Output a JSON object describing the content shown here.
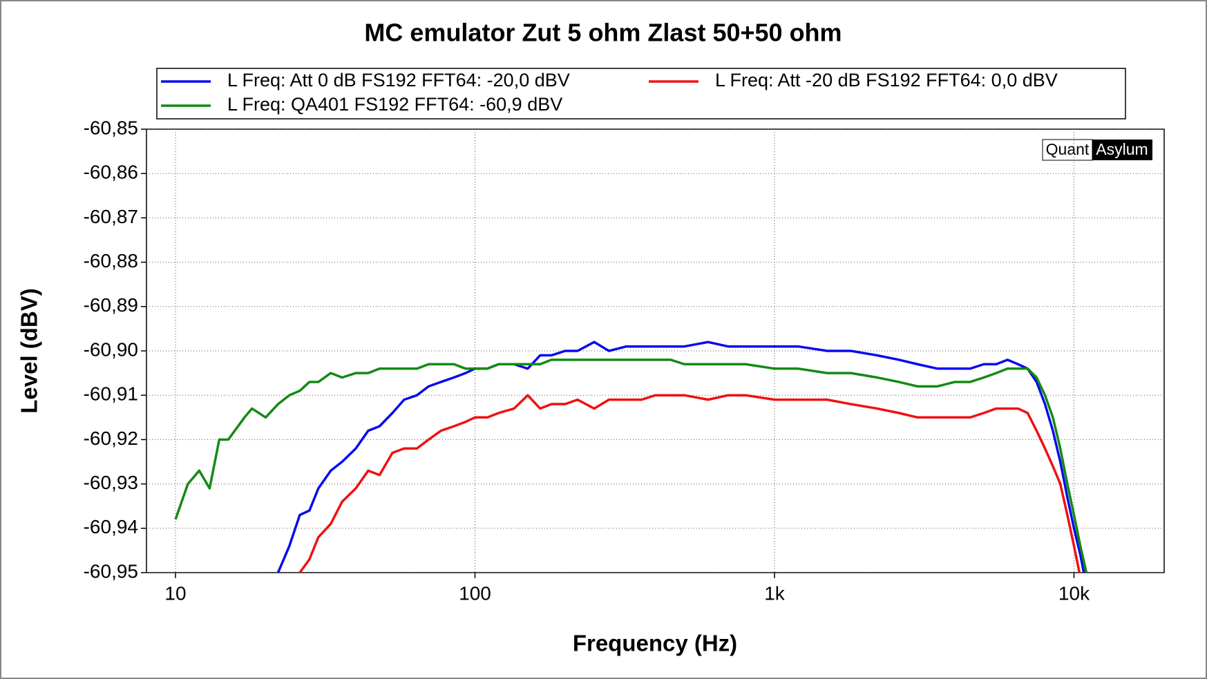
{
  "chart_data": {
    "type": "line",
    "title": "MC emulator Zut 5 ohm Zlast 50+50 ohm",
    "x_label": "Frequency (Hz)",
    "y_label": "Level (dBV)",
    "watermark": [
      "Quant",
      "Asylum"
    ],
    "x_scale": "log",
    "grid": true,
    "legend": "top",
    "xlim": [
      8,
      20000
    ],
    "xticks": [
      10,
      100,
      {
        "value": 1000,
        "label": "1k"
      },
      {
        "value": 10000,
        "label": "10k"
      }
    ],
    "ylim": [
      -60.95,
      -60.85
    ],
    "yticks": [
      {
        "value": -60.85,
        "label": "-60,85"
      },
      {
        "value": -60.86,
        "label": "-60,86"
      },
      {
        "value": -60.87,
        "label": "-60,87"
      },
      {
        "value": -60.88,
        "label": "-60,88"
      },
      {
        "value": -60.89,
        "label": "-60,89"
      },
      {
        "value": -60.9,
        "label": "-60,90"
      },
      {
        "value": -60.91,
        "label": "-60,91"
      },
      {
        "value": -60.92,
        "label": "-60,92"
      },
      {
        "value": -60.93,
        "label": "-60,93"
      },
      {
        "value": -60.94,
        "label": "-60,94"
      },
      {
        "value": -60.95,
        "label": "-60,95"
      }
    ],
    "x": [
      10,
      11,
      12,
      13,
      14,
      15,
      17,
      18,
      20,
      22,
      24,
      26,
      28,
      30,
      33,
      36,
      40,
      44,
      48,
      53,
      58,
      64,
      70,
      77,
      85,
      93,
      100,
      110,
      120,
      135,
      150,
      165,
      180,
      200,
      220,
      250,
      280,
      320,
      360,
      400,
      450,
      500,
      600,
      700,
      800,
      1000,
      1200,
      1500,
      1800,
      2200,
      2600,
      3000,
      3500,
      4000,
      4500,
      5000,
      5500,
      6000,
      6500,
      7000,
      7500,
      8000,
      8500,
      9000,
      9500,
      10000,
      10500,
      11000
    ],
    "series": [
      {
        "name": "L Freq: Att 0 dB FS192 FFT64: -20,0 dBV",
        "color": "#0a0aee",
        "values": [
          null,
          null,
          null,
          null,
          null,
          null,
          null,
          null,
          null,
          -60.95,
          -60.944,
          -60.937,
          -60.936,
          -60.931,
          -60.927,
          -60.925,
          -60.922,
          -60.918,
          -60.917,
          -60.914,
          -60.911,
          -60.91,
          -60.908,
          -60.907,
          -60.906,
          -60.905,
          -60.904,
          -60.904,
          -60.903,
          -60.903,
          -60.904,
          -60.901,
          -60.901,
          -60.9,
          -60.9,
          -60.898,
          -60.9,
          -60.899,
          -60.899,
          -60.899,
          -60.899,
          -60.899,
          -60.898,
          -60.899,
          -60.899,
          -60.899,
          -60.899,
          -60.9,
          -60.9,
          -60.901,
          -60.902,
          -60.903,
          -60.904,
          -60.904,
          -60.904,
          -60.903,
          -60.903,
          -60.902,
          -60.903,
          -60.904,
          -60.907,
          -60.912,
          -60.918,
          -60.925,
          -60.933,
          -60.94,
          -60.946,
          -60.953
        ]
      },
      {
        "name": "L Freq: Att -20 dB FS192 FFT64: 0,0 dBV",
        "color": "#ee1111",
        "values": [
          null,
          null,
          null,
          null,
          null,
          null,
          null,
          null,
          null,
          null,
          null,
          -60.95,
          -60.947,
          -60.942,
          -60.939,
          -60.934,
          -60.931,
          -60.927,
          -60.928,
          -60.923,
          -60.922,
          -60.922,
          -60.92,
          -60.918,
          -60.917,
          -60.916,
          -60.915,
          -60.915,
          -60.914,
          -60.913,
          -60.91,
          -60.913,
          -60.912,
          -60.912,
          -60.911,
          -60.913,
          -60.911,
          -60.911,
          -60.911,
          -60.91,
          -60.91,
          -60.91,
          -60.911,
          -60.91,
          -60.91,
          -60.911,
          -60.911,
          -60.911,
          -60.912,
          -60.913,
          -60.914,
          -60.915,
          -60.915,
          -60.915,
          -60.915,
          -60.914,
          -60.913,
          -60.913,
          -60.913,
          -60.914,
          -60.918,
          -60.922,
          -60.926,
          -60.93,
          -60.937,
          -60.944,
          -60.951,
          null
        ]
      },
      {
        "name": "L Freq: QA401 FS192 FFT64: -60,9 dBV",
        "color": "#138a13",
        "values": [
          -60.938,
          -60.93,
          -60.927,
          -60.931,
          -60.92,
          -60.92,
          -60.915,
          -60.913,
          -60.915,
          -60.912,
          -60.91,
          -60.909,
          -60.907,
          -60.907,
          -60.905,
          -60.906,
          -60.905,
          -60.905,
          -60.904,
          -60.904,
          -60.904,
          -60.904,
          -60.903,
          -60.903,
          -60.903,
          -60.904,
          -60.904,
          -60.904,
          -60.903,
          -60.903,
          -60.903,
          -60.903,
          -60.902,
          -60.902,
          -60.902,
          -60.902,
          -60.902,
          -60.902,
          -60.902,
          -60.902,
          -60.902,
          -60.903,
          -60.903,
          -60.903,
          -60.903,
          -60.904,
          -60.904,
          -60.905,
          -60.905,
          -60.906,
          -60.907,
          -60.908,
          -60.908,
          -60.907,
          -60.907,
          -60.906,
          -60.905,
          -60.904,
          -60.904,
          -60.904,
          -60.906,
          -60.91,
          -60.915,
          -60.922,
          -60.93,
          -60.937,
          -60.944,
          -60.95
        ]
      }
    ]
  }
}
